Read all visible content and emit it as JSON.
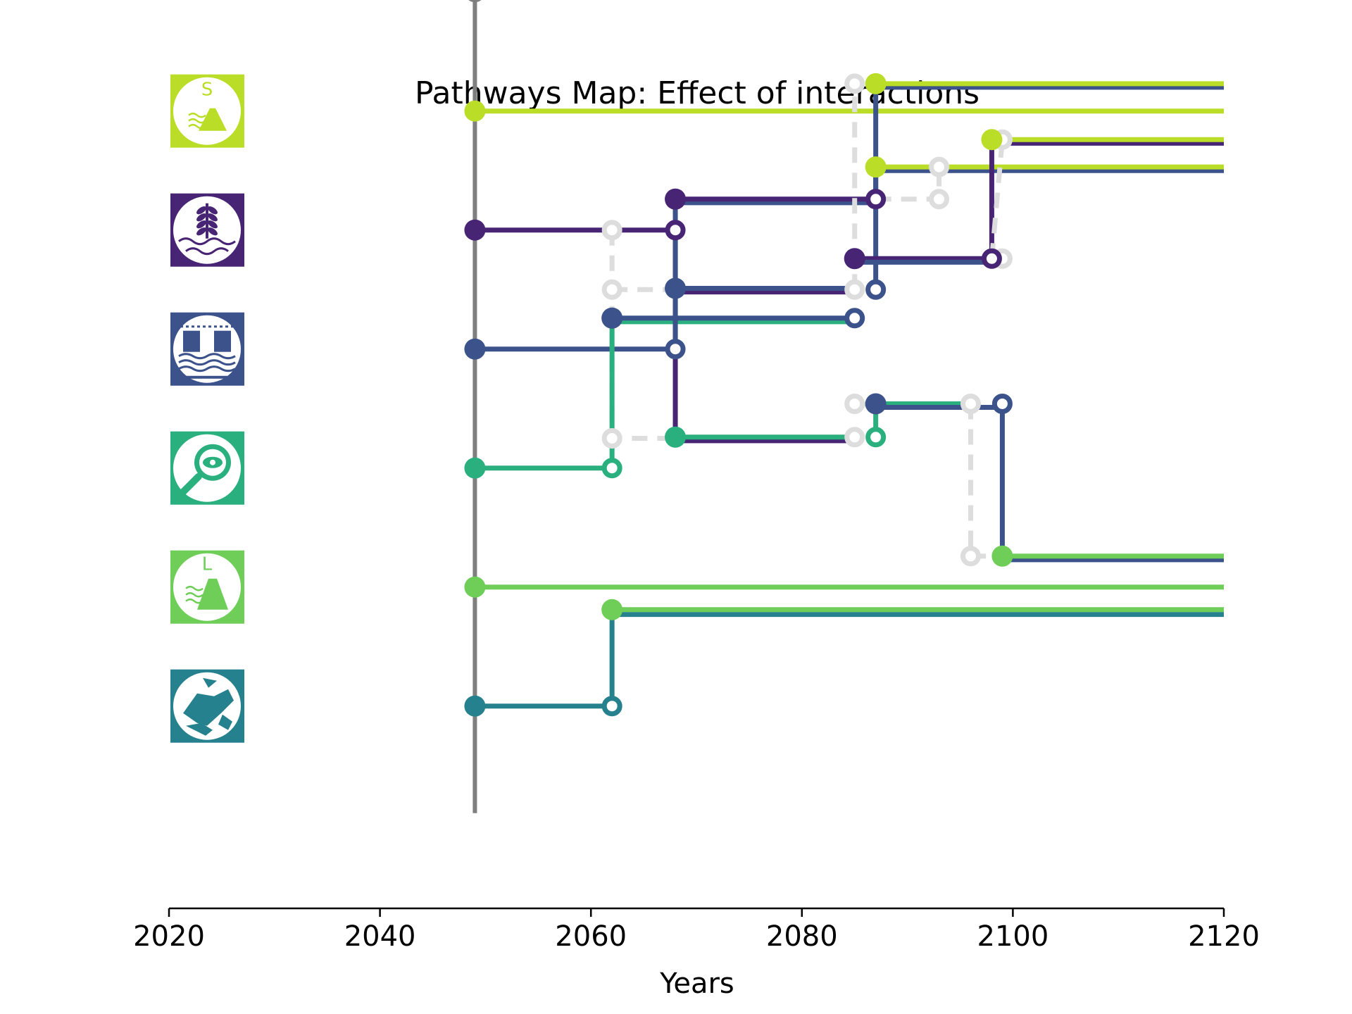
{
  "chart_data": {
    "type": "line",
    "title": "Pathways Map: Effect of interactions",
    "xlabel": "Years",
    "ylabel": "",
    "xlim": [
      2020,
      2120
    ],
    "x_ticks": [
      2020,
      2040,
      2060,
      2080,
      2100,
      2120
    ],
    "x_tick_labels": [
      "2020",
      "2040",
      "2060",
      "2080",
      "2100",
      "2120"
    ],
    "grid": false,
    "actions": [
      {
        "name": "Sea wall (small)",
        "icon": "small-dike-icon",
        "icon_letter": "S",
        "color": "#bade28"
      },
      {
        "name": "Nature-based",
        "icon": "plant-water-icon",
        "icon_letter": "",
        "color": "#482475"
      },
      {
        "name": "Storm barrier",
        "icon": "barrier-gates-icon",
        "icon_letter": "",
        "color": "#3b528b"
      },
      {
        "name": "Monitoring",
        "icon": "magnifier-eye-icon",
        "icon_letter": "",
        "color": "#2ab07f"
      },
      {
        "name": "Sea wall (large)",
        "icon": "large-dike-icon",
        "icon_letter": "L",
        "color": "#6ece58"
      },
      {
        "name": "Cooperation",
        "icon": "handshake-icon",
        "icon_letter": "",
        "color": "#26818e"
      }
    ],
    "colors": {
      "current": "#7f7f7f",
      "inactive": "#dddddd",
      "small_dike": "#bade28",
      "nature": "#482475",
      "barrier": "#3b528b",
      "monitoring": "#2ab07f",
      "large_dike": "#6ece58",
      "cooperation": "#26818e"
    },
    "paths": [
      {
        "color": "#7f7f7f",
        "points": [
          [
            2020,
            7.7
          ],
          [
            2049,
            7.7
          ]
        ]
      },
      {
        "color": "#7f7f7f",
        "points": [
          [
            2049,
            7.7
          ],
          [
            2049,
            0.8
          ]
        ]
      },
      {
        "color": "#bade28",
        "points": [
          [
            2049,
            6.7
          ],
          [
            2120,
            6.7
          ]
        ]
      },
      {
        "color": "#482475",
        "points": [
          [
            2049,
            5.7
          ],
          [
            2068,
            5.7
          ]
        ]
      },
      {
        "color": "#3b528b",
        "points": [
          [
            2049,
            4.7
          ],
          [
            2068,
            4.7
          ]
        ]
      },
      {
        "color": "#2ab07f",
        "points": [
          [
            2049,
            3.7
          ],
          [
            2062,
            3.7
          ]
        ]
      },
      {
        "color": "#6ece58",
        "points": [
          [
            2049,
            2.7
          ],
          [
            2120,
            2.7
          ]
        ]
      },
      {
        "color": "#26818e",
        "points": [
          [
            2049,
            1.7
          ],
          [
            2062,
            1.7
          ]
        ]
      },
      {
        "color": "#dddddd",
        "dashed": true,
        "points": [
          [
            2062,
            5.7
          ],
          [
            2062,
            3.95
          ],
          [
            2068,
            3.95
          ]
        ]
      },
      {
        "color": "#dddddd",
        "dashed": true,
        "points": [
          [
            2062,
            5.2
          ],
          [
            2068,
            5.2
          ]
        ]
      },
      {
        "color": "#2ab07f",
        "points": [
          [
            2062,
            3.7
          ],
          [
            2062,
            4.93
          ],
          [
            2085,
            4.93
          ]
        ]
      },
      {
        "color": "#3b528b",
        "points": [
          [
            2062,
            4.96
          ],
          [
            2085,
            4.96
          ]
        ]
      },
      {
        "color": "#26818e",
        "points": [
          [
            2062,
            1.7
          ],
          [
            2062,
            2.47
          ],
          [
            2120,
            2.47
          ]
        ]
      },
      {
        "color": "#6ece58",
        "points": [
          [
            2062,
            2.51
          ],
          [
            2120,
            2.51
          ]
        ]
      },
      {
        "color": "#482475",
        "points": [
          [
            2068,
            5.7
          ],
          [
            2068,
            3.93
          ],
          [
            2085,
            3.93
          ]
        ]
      },
      {
        "color": "#2ab07f",
        "points": [
          [
            2068,
            3.96
          ],
          [
            2085,
            3.96
          ]
        ]
      },
      {
        "color": "#3b528b",
        "points": [
          [
            2068,
            4.7
          ],
          [
            2068,
            5.93
          ],
          [
            2087,
            5.93
          ]
        ]
      },
      {
        "color": "#482475",
        "points": [
          [
            2068,
            5.96
          ],
          [
            2087,
            5.96
          ]
        ]
      },
      {
        "color": "#482475",
        "points": [
          [
            2068,
            5.18
          ],
          [
            2085,
            5.18
          ]
        ]
      },
      {
        "color": "#3b528b",
        "points": [
          [
            2068,
            5.21
          ],
          [
            2085,
            5.21
          ]
        ]
      },
      {
        "color": "#dddddd",
        "dashed": true,
        "points": [
          [
            2085,
            5.2
          ],
          [
            2085,
            6.93
          ]
        ]
      },
      {
        "color": "#dddddd",
        "dashed": true,
        "points": [
          [
            2085,
            4.24
          ],
          [
            2087,
            4.24
          ]
        ]
      },
      {
        "color": "#3b528b",
        "points": [
          [
            2087,
            5.2
          ],
          [
            2087,
            6.9
          ],
          [
            2120,
            6.9
          ]
        ]
      },
      {
        "color": "#bade28",
        "points": [
          [
            2087,
            6.93
          ],
          [
            2120,
            6.93
          ]
        ]
      },
      {
        "color": "#3b528b",
        "points": [
          [
            2087,
            5.96
          ],
          [
            2087,
            6.2
          ],
          [
            2120,
            6.2
          ]
        ]
      },
      {
        "color": "#bade28",
        "points": [
          [
            2087,
            6.23
          ],
          [
            2120,
            6.23
          ]
        ]
      },
      {
        "color": "#dddddd",
        "dashed": true,
        "points": [
          [
            2087,
            5.96
          ],
          [
            2093,
            5.96
          ],
          [
            2093,
            6.23
          ]
        ]
      },
      {
        "color": "#482475",
        "points": [
          [
            2085,
            5.46
          ],
          [
            2098,
            5.46
          ]
        ]
      },
      {
        "color": "#3b528b",
        "points": [
          [
            2085,
            5.43
          ],
          [
            2098,
            5.43
          ]
        ]
      },
      {
        "color": "#482475",
        "points": [
          [
            2098,
            5.46
          ],
          [
            2098,
            6.43
          ],
          [
            2120,
            6.43
          ]
        ]
      },
      {
        "color": "#bade28",
        "points": [
          [
            2098,
            6.46
          ],
          [
            2120,
            6.46
          ]
        ]
      },
      {
        "color": "#dddddd",
        "dashed": true,
        "points": [
          [
            2098,
            5.46
          ],
          [
            2099,
            6.46
          ]
        ]
      },
      {
        "color": "#2ab07f",
        "points": [
          [
            2087,
            3.93
          ],
          [
            2087,
            4.24
          ],
          [
            2096,
            4.24
          ]
        ]
      },
      {
        "color": "#3b528b",
        "points": [
          [
            2087,
            4.21
          ],
          [
            2099,
            4.21
          ]
        ]
      },
      {
        "color": "#dddddd",
        "dashed": true,
        "points": [
          [
            2096,
            4.24
          ],
          [
            2096,
            2.96
          ],
          [
            2099,
            2.96
          ]
        ]
      },
      {
        "color": "#3b528b",
        "points": [
          [
            2099,
            4.21
          ],
          [
            2099,
            2.93
          ],
          [
            2120,
            2.93
          ]
        ]
      },
      {
        "color": "#6ece58",
        "points": [
          [
            2099,
            2.96
          ],
          [
            2120,
            2.96
          ]
        ]
      }
    ],
    "markers": [
      {
        "x": 2049,
        "y": 7.7,
        "color": "#7f7f7f",
        "filled": false
      },
      {
        "x": 2049,
        "y": 6.7,
        "color": "#bade28",
        "filled": true
      },
      {
        "x": 2049,
        "y": 5.7,
        "color": "#482475",
        "filled": true
      },
      {
        "x": 2049,
        "y": 4.7,
        "color": "#3b528b",
        "filled": true
      },
      {
        "x": 2049,
        "y": 3.7,
        "color": "#2ab07f",
        "filled": true
      },
      {
        "x": 2049,
        "y": 2.7,
        "color": "#6ece58",
        "filled": true
      },
      {
        "x": 2049,
        "y": 1.7,
        "color": "#26818e",
        "filled": true
      },
      {
        "x": 2062,
        "y": 5.7,
        "color": "#dddddd",
        "filled": false
      },
      {
        "x": 2062,
        "y": 5.2,
        "color": "#dddddd",
        "filled": false
      },
      {
        "x": 2062,
        "y": 3.95,
        "color": "#dddddd",
        "filled": false
      },
      {
        "x": 2062,
        "y": 3.7,
        "color": "#2ab07f",
        "filled": false
      },
      {
        "x": 2062,
        "y": 4.96,
        "color": "#3b528b",
        "filled": true
      },
      {
        "x": 2062,
        "y": 1.7,
        "color": "#26818e",
        "filled": false
      },
      {
        "x": 2062,
        "y": 2.51,
        "color": "#6ece58",
        "filled": true
      },
      {
        "x": 2068,
        "y": 5.7,
        "color": "#482475",
        "filled": false
      },
      {
        "x": 2068,
        "y": 4.7,
        "color": "#3b528b",
        "filled": false
      },
      {
        "x": 2068,
        "y": 5.96,
        "color": "#482475",
        "filled": true
      },
      {
        "x": 2068,
        "y": 5.21,
        "color": "#3b528b",
        "filled": true
      },
      {
        "x": 2068,
        "y": 3.96,
        "color": "#2ab07f",
        "filled": true
      },
      {
        "x": 2085,
        "y": 6.93,
        "color": "#dddddd",
        "filled": false
      },
      {
        "x": 2085,
        "y": 5.2,
        "color": "#dddddd",
        "filled": false
      },
      {
        "x": 2085,
        "y": 4.96,
        "color": "#3b528b",
        "filled": false
      },
      {
        "x": 2085,
        "y": 5.46,
        "color": "#482475",
        "filled": true
      },
      {
        "x": 2085,
        "y": 4.24,
        "color": "#dddddd",
        "filled": false
      },
      {
        "x": 2085,
        "y": 3.96,
        "color": "#dddddd",
        "filled": false
      },
      {
        "x": 2087,
        "y": 6.93,
        "color": "#bade28",
        "filled": true
      },
      {
        "x": 2087,
        "y": 6.23,
        "color": "#bade28",
        "filled": true
      },
      {
        "x": 2087,
        "y": 5.96,
        "color": "#482475",
        "filled": false
      },
      {
        "x": 2087,
        "y": 5.2,
        "color": "#3b528b",
        "filled": false
      },
      {
        "x": 2087,
        "y": 4.24,
        "color": "#3b528b",
        "filled": true
      },
      {
        "x": 2087,
        "y": 3.96,
        "color": "#2ab07f",
        "filled": false
      },
      {
        "x": 2093,
        "y": 6.23,
        "color": "#dddddd",
        "filled": false
      },
      {
        "x": 2093,
        "y": 5.96,
        "color": "#dddddd",
        "filled": false
      },
      {
        "x": 2096,
        "y": 4.24,
        "color": "#dddddd",
        "filled": false
      },
      {
        "x": 2096,
        "y": 2.96,
        "color": "#dddddd",
        "filled": false
      },
      {
        "x": 2099,
        "y": 6.46,
        "color": "#dddddd",
        "filled": false
      },
      {
        "x": 2099,
        "y": 5.46,
        "color": "#dddddd",
        "filled": false
      },
      {
        "x": 2098,
        "y": 6.46,
        "color": "#bade28",
        "filled": true
      },
      {
        "x": 2098,
        "y": 5.46,
        "color": "#482475",
        "filled": false
      },
      {
        "x": 2099,
        "y": 4.24,
        "color": "#3b528b",
        "filled": false
      },
      {
        "x": 2099,
        "y": 2.96,
        "color": "#6ece58",
        "filled": true
      }
    ]
  }
}
